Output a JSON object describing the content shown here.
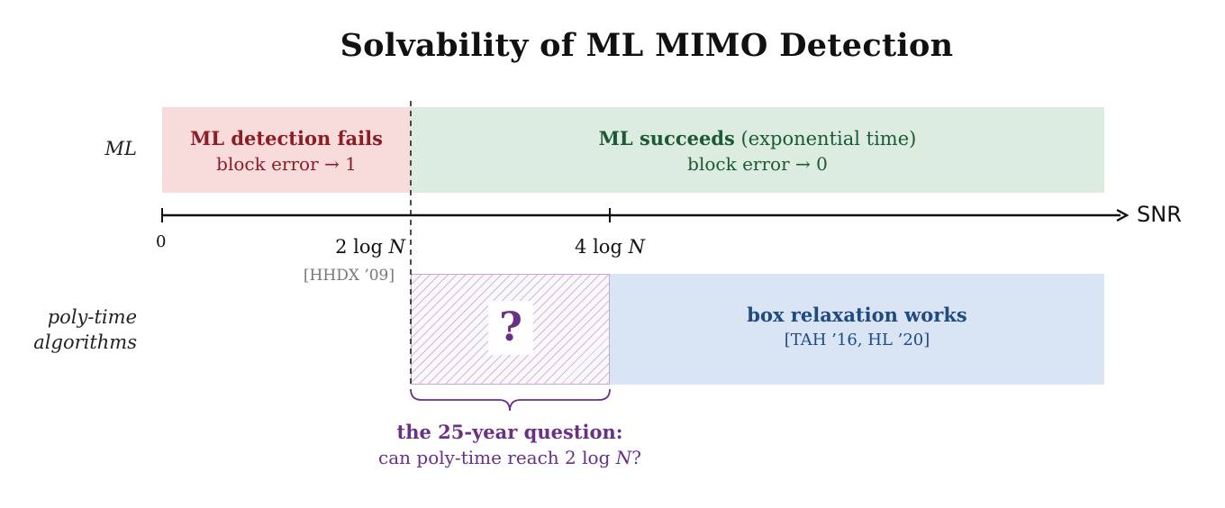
{
  "title": "Solvability of ML MIMO Detection",
  "row_labels": {
    "ml": "ML",
    "poly_line1": "poly-time",
    "poly_line2": "algorithms"
  },
  "ml_fails": {
    "heading": "ML detection fails",
    "sub": "block error → 1"
  },
  "ml_succeeds": {
    "heading_bold": "ML succeeds",
    "heading_rest": " (exponential time)",
    "sub": "block error → 0"
  },
  "axis": {
    "label": "SNR",
    "origin": "0",
    "tick1_prefix": "2 log ",
    "tick1_var": "N",
    "tick1_cite": "[HHDX ’09]",
    "tick2_prefix": "4 log ",
    "tick2_var": "N"
  },
  "unknown": {
    "mark": "?"
  },
  "box_relaxation": {
    "heading": "box relaxation works",
    "cite": "[TAH ’16, HL ’20]"
  },
  "question": {
    "heading": "the 25-year question:",
    "sub_prefix": "can poly-time reach 2 log ",
    "sub_var": "N",
    "sub_suffix": "?"
  },
  "colors": {
    "fail_region": "#f8dbdb",
    "success_region": "#dcece0",
    "poly_region": "#d9e4f4",
    "question_accent": "#6a2f86"
  }
}
